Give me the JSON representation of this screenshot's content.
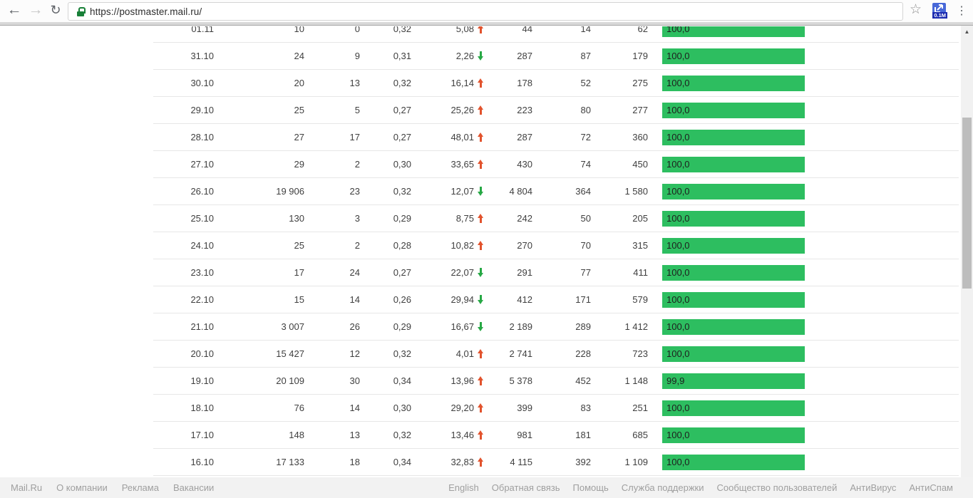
{
  "browser": {
    "url": "https://postmaster.mail.ru/",
    "extension_badge": "0.1M"
  },
  "icons": {
    "back": "←",
    "forward": "→",
    "reload": "↻",
    "star": "☆",
    "menu": "⋮",
    "scroll_up": "▲",
    "scroll_down": "▼"
  },
  "colors": {
    "bar_green": "#2dbe60",
    "trend_up_red": "#e2532d",
    "trend_down_green": "#27a845",
    "lock_green": "#188038"
  },
  "chart_data": {
    "type": "table",
    "columns": [
      "date",
      "c1",
      "c2",
      "c3",
      "c4_trend",
      "c5",
      "c6",
      "c7",
      "bar_percent"
    ],
    "bar_max": 100,
    "rows": [
      {
        "date": "01.11",
        "c1": "10",
        "c2": "0",
        "c3": "0,32",
        "c4": "5,08",
        "trend": "up",
        "c5": "44",
        "c6": "14",
        "c7": "62",
        "bar": "100,0"
      },
      {
        "date": "31.10",
        "c1": "24",
        "c2": "9",
        "c3": "0,31",
        "c4": "2,26",
        "trend": "down",
        "c5": "287",
        "c6": "87",
        "c7": "179",
        "bar": "100,0"
      },
      {
        "date": "30.10",
        "c1": "20",
        "c2": "13",
        "c3": "0,32",
        "c4": "16,14",
        "trend": "up",
        "c5": "178",
        "c6": "52",
        "c7": "275",
        "bar": "100,0"
      },
      {
        "date": "29.10",
        "c1": "25",
        "c2": "5",
        "c3": "0,27",
        "c4": "25,26",
        "trend": "up",
        "c5": "223",
        "c6": "80",
        "c7": "277",
        "bar": "100,0"
      },
      {
        "date": "28.10",
        "c1": "27",
        "c2": "17",
        "c3": "0,27",
        "c4": "48,01",
        "trend": "up",
        "c5": "287",
        "c6": "72",
        "c7": "360",
        "bar": "100,0"
      },
      {
        "date": "27.10",
        "c1": "29",
        "c2": "2",
        "c3": "0,30",
        "c4": "33,65",
        "trend": "up",
        "c5": "430",
        "c6": "74",
        "c7": "450",
        "bar": "100,0"
      },
      {
        "date": "26.10",
        "c1": "19 906",
        "c2": "23",
        "c3": "0,32",
        "c4": "12,07",
        "trend": "down",
        "c5": "4 804",
        "c6": "364",
        "c7": "1 580",
        "bar": "100,0"
      },
      {
        "date": "25.10",
        "c1": "130",
        "c2": "3",
        "c3": "0,29",
        "c4": "8,75",
        "trend": "up",
        "c5": "242",
        "c6": "50",
        "c7": "205",
        "bar": "100,0"
      },
      {
        "date": "24.10",
        "c1": "25",
        "c2": "2",
        "c3": "0,28",
        "c4": "10,82",
        "trend": "up",
        "c5": "270",
        "c6": "70",
        "c7": "315",
        "bar": "100,0"
      },
      {
        "date": "23.10",
        "c1": "17",
        "c2": "24",
        "c3": "0,27",
        "c4": "22,07",
        "trend": "down",
        "c5": "291",
        "c6": "77",
        "c7": "411",
        "bar": "100,0"
      },
      {
        "date": "22.10",
        "c1": "15",
        "c2": "14",
        "c3": "0,26",
        "c4": "29,94",
        "trend": "down",
        "c5": "412",
        "c6": "171",
        "c7": "579",
        "bar": "100,0"
      },
      {
        "date": "21.10",
        "c1": "3 007",
        "c2": "26",
        "c3": "0,29",
        "c4": "16,67",
        "trend": "down",
        "c5": "2 189",
        "c6": "289",
        "c7": "1 412",
        "bar": "100,0"
      },
      {
        "date": "20.10",
        "c1": "15 427",
        "c2": "12",
        "c3": "0,32",
        "c4": "4,01",
        "trend": "up",
        "c5": "2 741",
        "c6": "228",
        "c7": "723",
        "bar": "100,0"
      },
      {
        "date": "19.10",
        "c1": "20 109",
        "c2": "30",
        "c3": "0,34",
        "c4": "13,96",
        "trend": "up",
        "c5": "5 378",
        "c6": "452",
        "c7": "1 148",
        "bar": "99,9"
      },
      {
        "date": "18.10",
        "c1": "76",
        "c2": "14",
        "c3": "0,30",
        "c4": "29,20",
        "trend": "up",
        "c5": "399",
        "c6": "83",
        "c7": "251",
        "bar": "100,0"
      },
      {
        "date": "17.10",
        "c1": "148",
        "c2": "13",
        "c3": "0,32",
        "c4": "13,46",
        "trend": "up",
        "c5": "981",
        "c6": "181",
        "c7": "685",
        "bar": "100,0"
      },
      {
        "date": "16.10",
        "c1": "17 133",
        "c2": "18",
        "c3": "0,34",
        "c4": "32,83",
        "trend": "up",
        "c5": "4 115",
        "c6": "392",
        "c7": "1 109",
        "bar": "100,0"
      }
    ]
  },
  "footer": {
    "left_links": [
      "Mail.Ru",
      "О компании",
      "Реклама",
      "Вакансии"
    ],
    "right_links": [
      "English",
      "Обратная связь",
      "Помощь",
      "Служба поддержки",
      "Сообщество пользователей",
      "АнтиВирус",
      "АнтиСпам"
    ]
  }
}
